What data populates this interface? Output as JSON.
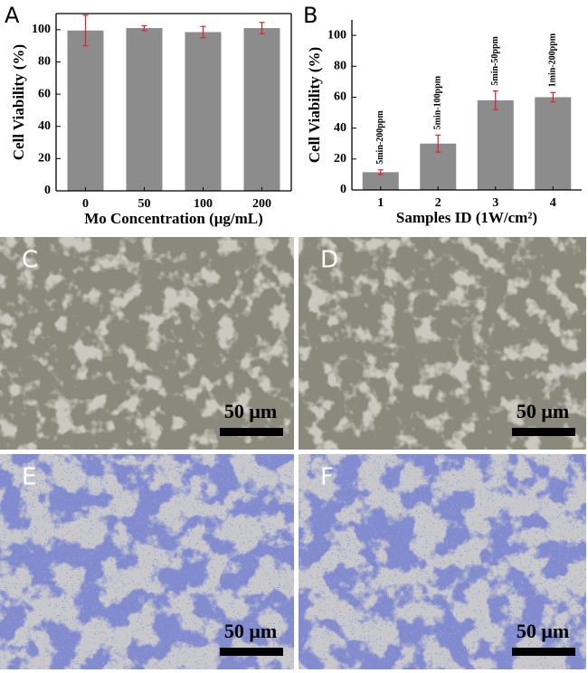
{
  "chart_data": [
    {
      "type": "bar",
      "panel_label": "A",
      "x_label": "Mo Concentration (μg/mL)",
      "y_label": "Cell Viability (%)",
      "categories": [
        "0",
        "50",
        "100",
        "200"
      ],
      "values": [
        99.5,
        101,
        98.5,
        101
      ],
      "errors": [
        9.5,
        1.5,
        3.5,
        3.5
      ],
      "color": "#8c8c8c",
      "error_color": "#e0202a",
      "ylim": [
        0,
        110
      ],
      "yticks": [
        0,
        20,
        40,
        60,
        80,
        100
      ],
      "frame": true
    },
    {
      "type": "bar",
      "panel_label": "B",
      "x_label": "Samples ID (1W/cm²)",
      "y_label": "Cell Viability (%)",
      "categories": [
        "1",
        "2",
        "3",
        "4"
      ],
      "values": [
        11.5,
        30,
        58,
        60
      ],
      "errors": [
        1.5,
        5.5,
        6,
        3
      ],
      "annotations": [
        "5min-200ppm",
        "5min-100ppm",
        "5min-50ppm",
        "1min-200ppm"
      ],
      "color": "#8c8c8c",
      "error_color": "#e0202a",
      "ylim": [
        0,
        110
      ],
      "yticks": [
        0,
        20,
        40,
        60,
        80,
        100
      ],
      "frame": false
    }
  ],
  "panels": [
    {
      "label": "C",
      "scale_bar": "50 μm",
      "stain": "light"
    },
    {
      "label": "D",
      "scale_bar": "50 μm",
      "stain": "light"
    },
    {
      "label": "E",
      "scale_bar": "50 μm",
      "stain": "blue"
    },
    {
      "label": "F",
      "scale_bar": "50 μm",
      "stain": "blue"
    }
  ]
}
